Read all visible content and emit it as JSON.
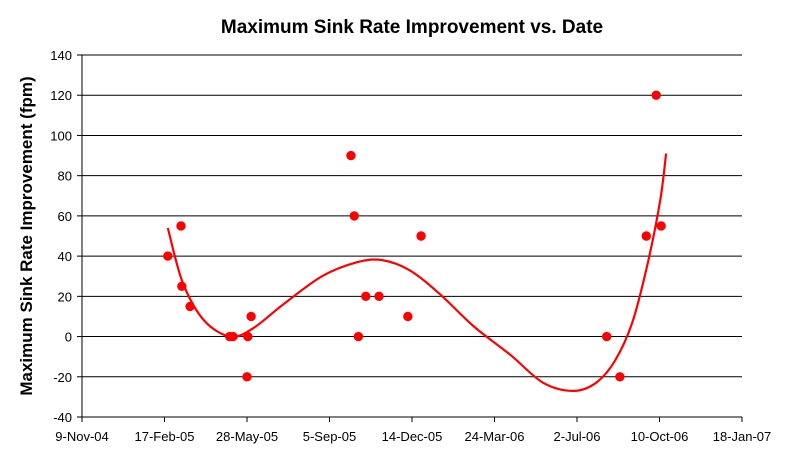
{
  "chart_data": {
    "type": "scatter",
    "title": "Maximum Sink Rate Improvement vs. Date",
    "xlabel": "",
    "ylabel": "Maximum Sink Rate Improvement (fpm)",
    "xlim": [
      "2004-11-09",
      "2007-01-18"
    ],
    "ylim": [
      -40,
      140
    ],
    "x_ticks": [
      "9-Nov-04",
      "17-Feb-05",
      "28-May-05",
      "5-Sep-05",
      "14-Dec-05",
      "24-Mar-06",
      "2-Jul-06",
      "10-Oct-06",
      "18-Jan-07"
    ],
    "y_ticks": [
      -40,
      -20,
      0,
      20,
      40,
      60,
      80,
      100,
      120,
      140
    ],
    "grid": "horizontal",
    "legend": "none",
    "series": [
      {
        "marker_color": "#ff0000",
        "points": [
          {
            "x": "2005-02-21",
            "y": 40
          },
          {
            "x": "2005-03-09",
            "y": 55
          },
          {
            "x": "2005-03-10",
            "y": 25
          },
          {
            "x": "2005-03-20",
            "y": 15
          },
          {
            "x": "2005-05-07",
            "y": 0
          },
          {
            "x": "2005-05-11",
            "y": 0
          },
          {
            "x": "2005-05-28",
            "y": -20
          },
          {
            "x": "2005-05-29",
            "y": 0
          },
          {
            "x": "2005-06-02",
            "y": 10
          },
          {
            "x": "2005-10-01",
            "y": 90
          },
          {
            "x": "2005-10-05",
            "y": 60
          },
          {
            "x": "2005-10-10",
            "y": 0
          },
          {
            "x": "2005-10-19",
            "y": 20
          },
          {
            "x": "2005-11-04",
            "y": 20
          },
          {
            "x": "2005-12-09",
            "y": 10
          },
          {
            "x": "2005-12-25",
            "y": 50
          },
          {
            "x": "2006-08-07",
            "y": 0
          },
          {
            "x": "2006-08-23",
            "y": -20
          },
          {
            "x": "2006-09-24",
            "y": 50
          },
          {
            "x": "2006-10-06",
            "y": 120
          },
          {
            "x": "2006-10-12",
            "y": 55
          }
        ]
      }
    ],
    "trendline": {
      "type": "polynomial",
      "line_color": "#ff0000",
      "points": [
        {
          "x": "2005-02-21",
          "y": 54
        },
        {
          "x": "2005-03-11",
          "y": 27
        },
        {
          "x": "2005-04-06",
          "y": 8
        },
        {
          "x": "2005-05-08",
          "y": 0
        },
        {
          "x": "2005-06-04",
          "y": 4
        },
        {
          "x": "2005-07-11",
          "y": 16
        },
        {
          "x": "2005-08-27",
          "y": 30
        },
        {
          "x": "2005-10-09",
          "y": 37
        },
        {
          "x": "2005-11-08",
          "y": 38
        },
        {
          "x": "2005-12-11",
          "y": 33
        },
        {
          "x": "2006-01-17",
          "y": 21
        },
        {
          "x": "2006-02-27",
          "y": 5
        },
        {
          "x": "2006-04-12",
          "y": -9
        },
        {
          "x": "2006-05-22",
          "y": -23
        },
        {
          "x": "2006-06-28",
          "y": -27
        },
        {
          "x": "2006-07-25",
          "y": -23
        },
        {
          "x": "2006-08-17",
          "y": -12
        },
        {
          "x": "2006-09-07",
          "y": 7
        },
        {
          "x": "2006-09-26",
          "y": 37
        },
        {
          "x": "2006-10-11",
          "y": 68
        },
        {
          "x": "2006-10-18",
          "y": 91
        }
      ]
    }
  }
}
